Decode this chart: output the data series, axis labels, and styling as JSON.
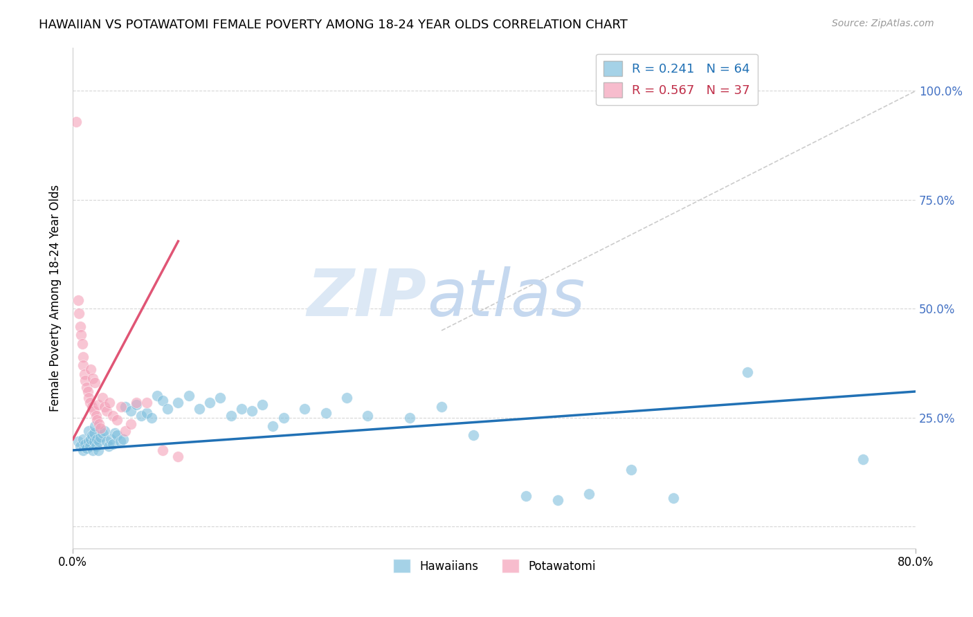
{
  "title": "HAWAIIAN VS POTAWATOMI FEMALE POVERTY AMONG 18-24 YEAR OLDS CORRELATION CHART",
  "source": "Source: ZipAtlas.com",
  "ylabel": "Female Poverty Among 18-24 Year Olds",
  "xlim": [
    0.0,
    0.8
  ],
  "ylim": [
    -0.05,
    1.1
  ],
  "background_color": "#ffffff",
  "grid_color": "#cccccc",
  "hawaiian_color": "#7fbfdd",
  "potawatomi_color": "#f4a0b8",
  "hawaiian_line_color": "#2171b5",
  "potawatomi_line_color": "#e05575",
  "ref_line_color": "#cccccc",
  "watermark_zip_color": "#c8d8ec",
  "watermark_atlas_color": "#c8d8ec",
  "legend_R_hawaiian": "R = 0.241",
  "legend_N_hawaiian": "N = 64",
  "legend_R_potawatomi": "R = 0.567",
  "legend_N_potawatomi": "N = 37",
  "hawaiian_x": [
    0.005,
    0.007,
    0.01,
    0.01,
    0.012,
    0.013,
    0.015,
    0.015,
    0.016,
    0.017,
    0.018,
    0.019,
    0.02,
    0.02,
    0.021,
    0.022,
    0.023,
    0.024,
    0.025,
    0.026,
    0.028,
    0.03,
    0.032,
    0.034,
    0.036,
    0.038,
    0.04,
    0.042,
    0.045,
    0.048,
    0.05,
    0.055,
    0.06,
    0.065,
    0.07,
    0.075,
    0.08,
    0.085,
    0.09,
    0.1,
    0.11,
    0.12,
    0.13,
    0.14,
    0.15,
    0.16,
    0.17,
    0.18,
    0.19,
    0.2,
    0.22,
    0.24,
    0.26,
    0.28,
    0.32,
    0.35,
    0.38,
    0.43,
    0.46,
    0.49,
    0.53,
    0.57,
    0.64,
    0.75
  ],
  "hawaiian_y": [
    0.195,
    0.185,
    0.2,
    0.175,
    0.19,
    0.18,
    0.22,
    0.195,
    0.185,
    0.2,
    0.21,
    0.175,
    0.195,
    0.215,
    0.23,
    0.185,
    0.2,
    0.175,
    0.195,
    0.205,
    0.215,
    0.22,
    0.195,
    0.185,
    0.2,
    0.19,
    0.215,
    0.21,
    0.195,
    0.2,
    0.275,
    0.265,
    0.28,
    0.255,
    0.26,
    0.25,
    0.3,
    0.29,
    0.27,
    0.285,
    0.3,
    0.27,
    0.285,
    0.295,
    0.255,
    0.27,
    0.265,
    0.28,
    0.23,
    0.25,
    0.27,
    0.26,
    0.295,
    0.255,
    0.25,
    0.275,
    0.21,
    0.07,
    0.06,
    0.075,
    0.13,
    0.065,
    0.355,
    0.155
  ],
  "potawatomi_x": [
    0.003,
    0.005,
    0.006,
    0.007,
    0.008,
    0.009,
    0.01,
    0.01,
    0.011,
    0.012,
    0.013,
    0.014,
    0.015,
    0.016,
    0.017,
    0.018,
    0.019,
    0.02,
    0.021,
    0.022,
    0.023,
    0.024,
    0.025,
    0.026,
    0.028,
    0.03,
    0.032,
    0.035,
    0.038,
    0.042,
    0.046,
    0.05,
    0.055,
    0.06,
    0.07,
    0.085,
    0.1
  ],
  "potawatomi_y": [
    0.93,
    0.52,
    0.49,
    0.46,
    0.44,
    0.42,
    0.39,
    0.37,
    0.35,
    0.335,
    0.32,
    0.31,
    0.295,
    0.285,
    0.36,
    0.275,
    0.34,
    0.265,
    0.33,
    0.255,
    0.245,
    0.28,
    0.235,
    0.225,
    0.295,
    0.275,
    0.265,
    0.285,
    0.255,
    0.245,
    0.275,
    0.22,
    0.235,
    0.285,
    0.285,
    0.175,
    0.16
  ],
  "hawaiian_trend_x": [
    0.0,
    0.8
  ],
  "hawaiian_trend_y": [
    0.175,
    0.31
  ],
  "potawatomi_trend_x": [
    0.0,
    0.1
  ],
  "potawatomi_trend_y": [
    0.2,
    0.655
  ],
  "ref_line_x": [
    0.35,
    0.8
  ],
  "ref_line_y": [
    0.45,
    1.0
  ]
}
